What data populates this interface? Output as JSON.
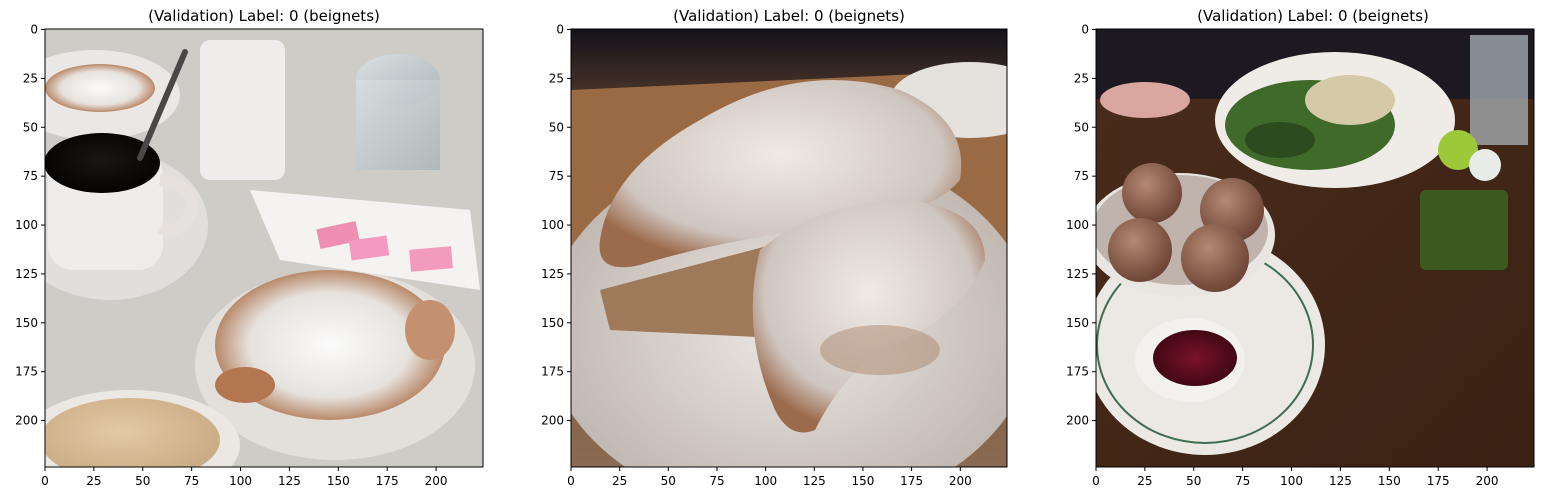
{
  "figure": {
    "panels": [
      {
        "title": "(Validation)  Label: 0 (beignets)",
        "image_subject": "beignets with powdered sugar, coffee cups and sugar dispenser on a marble table",
        "x_ticks": [
          "0",
          "25",
          "50",
          "75",
          "100",
          "125",
          "150",
          "175",
          "200"
        ],
        "y_ticks": [
          "0",
          "25",
          "50",
          "75",
          "100",
          "125",
          "150",
          "175",
          "200"
        ]
      },
      {
        "title": "(Validation)  Label: 0 (beignets)",
        "image_subject": "two large powdered-sugar beignets on a white plate",
        "x_ticks": [
          "0",
          "25",
          "50",
          "75",
          "100",
          "125",
          "150",
          "175",
          "200"
        ],
        "y_ticks": [
          "0",
          "25",
          "50",
          "75",
          "100",
          "125",
          "150",
          "175",
          "200"
        ]
      },
      {
        "title": "(Validation)  Label: 0 (beignets)",
        "image_subject": "bowl of beignet holes with dipping sauce, salad plate, flower vase on wooden table",
        "x_ticks": [
          "0",
          "25",
          "50",
          "75",
          "100",
          "125",
          "150",
          "175",
          "200"
        ],
        "y_ticks": [
          "0",
          "25",
          "50",
          "75",
          "100",
          "125",
          "150",
          "175",
          "200"
        ]
      }
    ]
  }
}
